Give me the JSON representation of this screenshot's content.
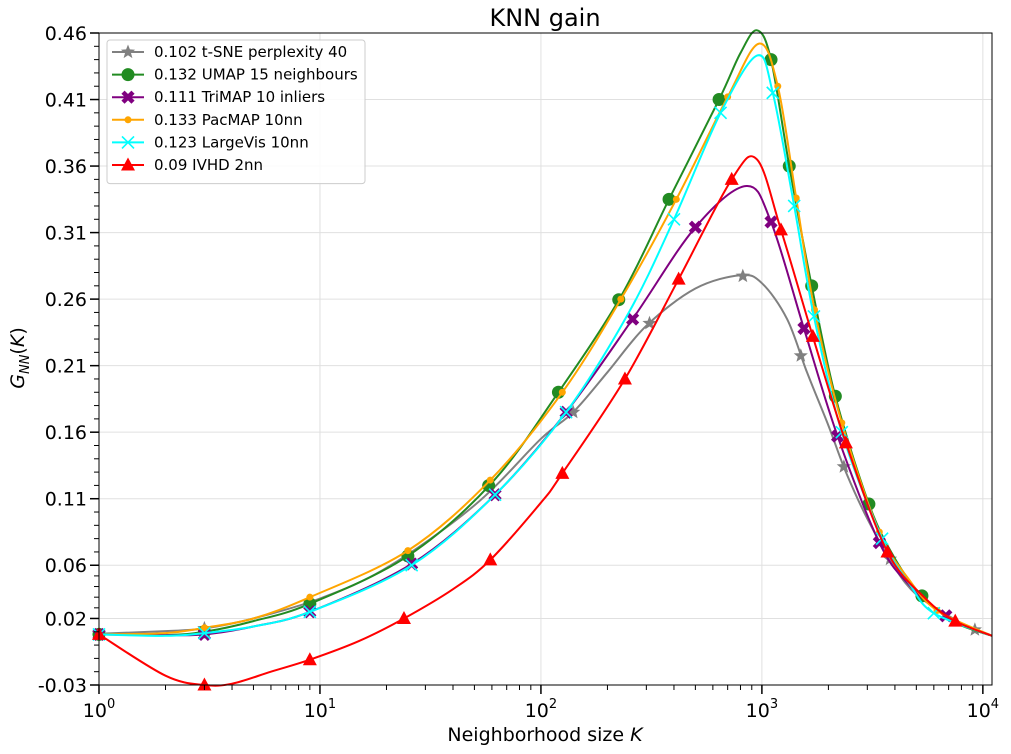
{
  "chart_data": {
    "type": "line",
    "title": "KNN gain",
    "xlabel": "Neighborhood size K",
    "ylabel": "G_NN(K)",
    "x_scale": "log",
    "xlim": [
      1,
      11000
    ],
    "ylim": [
      -0.03,
      0.46
    ],
    "x_ticks": [
      1,
      10,
      100,
      1000,
      10000
    ],
    "x_tick_labels": [
      {
        "base": "10",
        "exp": "0"
      },
      {
        "base": "10",
        "exp": "1"
      },
      {
        "base": "10",
        "exp": "2"
      },
      {
        "base": "10",
        "exp": "3"
      },
      {
        "base": "10",
        "exp": "4"
      }
    ],
    "y_ticks": [
      -0.03,
      0.02,
      0.06,
      0.11,
      0.16,
      0.21,
      0.26,
      0.31,
      0.36,
      0.41,
      0.46
    ],
    "y_tick_labels": [
      "-0.03",
      "0.02",
      "0.06",
      "0.11",
      "0.16",
      "0.21",
      "0.26",
      "0.31",
      "0.36",
      "0.41",
      "0.46"
    ],
    "grid": true,
    "legend_position": "top-left",
    "series": [
      {
        "name": "0.102 t-SNE perplexity 40",
        "color": "#808080",
        "marker": "star",
        "x": [
          1,
          2,
          3,
          5,
          10,
          20,
          50,
          100,
          140,
          200,
          300,
          500,
          800,
          1000,
          1300,
          1600,
          2000,
          2400,
          3000,
          4000,
          5000,
          7000,
          9200,
          11000
        ],
        "y": [
          0.0085,
          0.0105,
          0.0125,
          0.02,
          0.035,
          0.058,
          0.105,
          0.155,
          0.175,
          0.205,
          0.24,
          0.268,
          0.278,
          0.272,
          0.245,
          0.205,
          0.165,
          0.13,
          0.095,
          0.058,
          0.038,
          0.022,
          0.0115,
          0.007
        ],
        "markers_at": [
          1,
          3,
          140,
          310,
          820,
          1500,
          2350,
          3800,
          9200
        ]
      },
      {
        "name": "0.132 UMAP 15 neighbours",
        "color": "#228b22",
        "marker": "circle",
        "x": [
          1,
          2,
          3,
          5,
          9,
          25,
          60,
          120,
          230,
          380,
          640,
          800,
          950,
          1100,
          1330,
          1680,
          2150,
          3050,
          4000,
          5300,
          7500,
          11000
        ],
        "y": [
          0.008,
          0.0075,
          0.01,
          0.018,
          0.031,
          0.067,
          0.122,
          0.19,
          0.262,
          0.335,
          0.41,
          0.445,
          0.462,
          0.44,
          0.36,
          0.27,
          0.187,
          0.106,
          0.065,
          0.037,
          0.017,
          0.007
        ],
        "markers_at": [
          1,
          3,
          9,
          25,
          58,
          120,
          225,
          380,
          640,
          1100,
          1330,
          1680,
          2150,
          3050,
          5300
        ]
      },
      {
        "name": "0.111 TriMAP 10 inliers",
        "color": "#800080",
        "marker": "x",
        "x": [
          1,
          2,
          3,
          5,
          9,
          26,
          62,
          130,
          260,
          500,
          850,
          1100,
          1550,
          2200,
          3400,
          4600,
          6800,
          11000
        ],
        "y": [
          0.008,
          0.0075,
          0.008,
          0.014,
          0.025,
          0.061,
          0.113,
          0.175,
          0.245,
          0.314,
          0.345,
          0.318,
          0.238,
          0.157,
          0.077,
          0.046,
          0.022,
          0.007
        ],
        "markers_at": [
          1,
          3,
          9,
          26,
          62,
          130,
          260,
          500,
          1100,
          1550,
          2200,
          3400,
          6800
        ]
      },
      {
        "name": "0.133 PacMAP 10nn",
        "color": "#ffa500",
        "marker": "dot",
        "x": [
          1,
          2,
          3,
          5,
          9,
          25,
          59,
          125,
          230,
          410,
          700,
          970,
          1180,
          1430,
          1730,
          2300,
          3400,
          4600,
          6200,
          11000
        ],
        "y": [
          0.008,
          0.009,
          0.013,
          0.02,
          0.036,
          0.071,
          0.124,
          0.19,
          0.26,
          0.335,
          0.412,
          0.452,
          0.42,
          0.336,
          0.252,
          0.167,
          0.085,
          0.05,
          0.026,
          0.007
        ],
        "markers_at": [
          1,
          3,
          9,
          25,
          59,
          125,
          230,
          410,
          700,
          1180,
          1430,
          1730,
          2300,
          3400,
          6200
        ]
      },
      {
        "name": "0.123 LargeVis 10nn",
        "color": "#00ffff",
        "marker": "x-thin",
        "x": [
          1,
          2,
          3,
          5,
          9,
          26,
          62,
          130,
          250,
          400,
          650,
          950,
          1120,
          1400,
          1720,
          2300,
          3500,
          4700,
          6000,
          11000
        ],
        "y": [
          0.008,
          0.007,
          0.009,
          0.014,
          0.025,
          0.06,
          0.113,
          0.175,
          0.25,
          0.32,
          0.4,
          0.443,
          0.415,
          0.33,
          0.247,
          0.16,
          0.08,
          0.045,
          0.024,
          0.007
        ],
        "markers_at": [
          1,
          3,
          9,
          26,
          62,
          130,
          400,
          650,
          1120,
          1400,
          1720,
          2300,
          3500,
          6000
        ]
      },
      {
        "name": "0.09 IVHD 2nn",
        "color": "#ff0000",
        "marker": "triangle",
        "x": [
          1,
          2,
          3,
          4,
          6,
          9,
          15,
          24,
          40,
          59,
          100,
          125,
          240,
          420,
          730,
          950,
          1220,
          1700,
          2400,
          3700,
          5500,
          7500,
          11000
        ],
        "y": [
          0.008,
          -0.023,
          -0.03,
          -0.029,
          -0.02,
          -0.011,
          0.003,
          0.02,
          0.042,
          0.064,
          0.107,
          0.129,
          0.2,
          0.275,
          0.35,
          0.365,
          0.312,
          0.232,
          0.152,
          0.07,
          0.035,
          0.018,
          0.007
        ],
        "markers_at": [
          1,
          3,
          9,
          24,
          59,
          125,
          240,
          420,
          730,
          1220,
          1700,
          2400,
          3700,
          7500
        ]
      }
    ]
  }
}
